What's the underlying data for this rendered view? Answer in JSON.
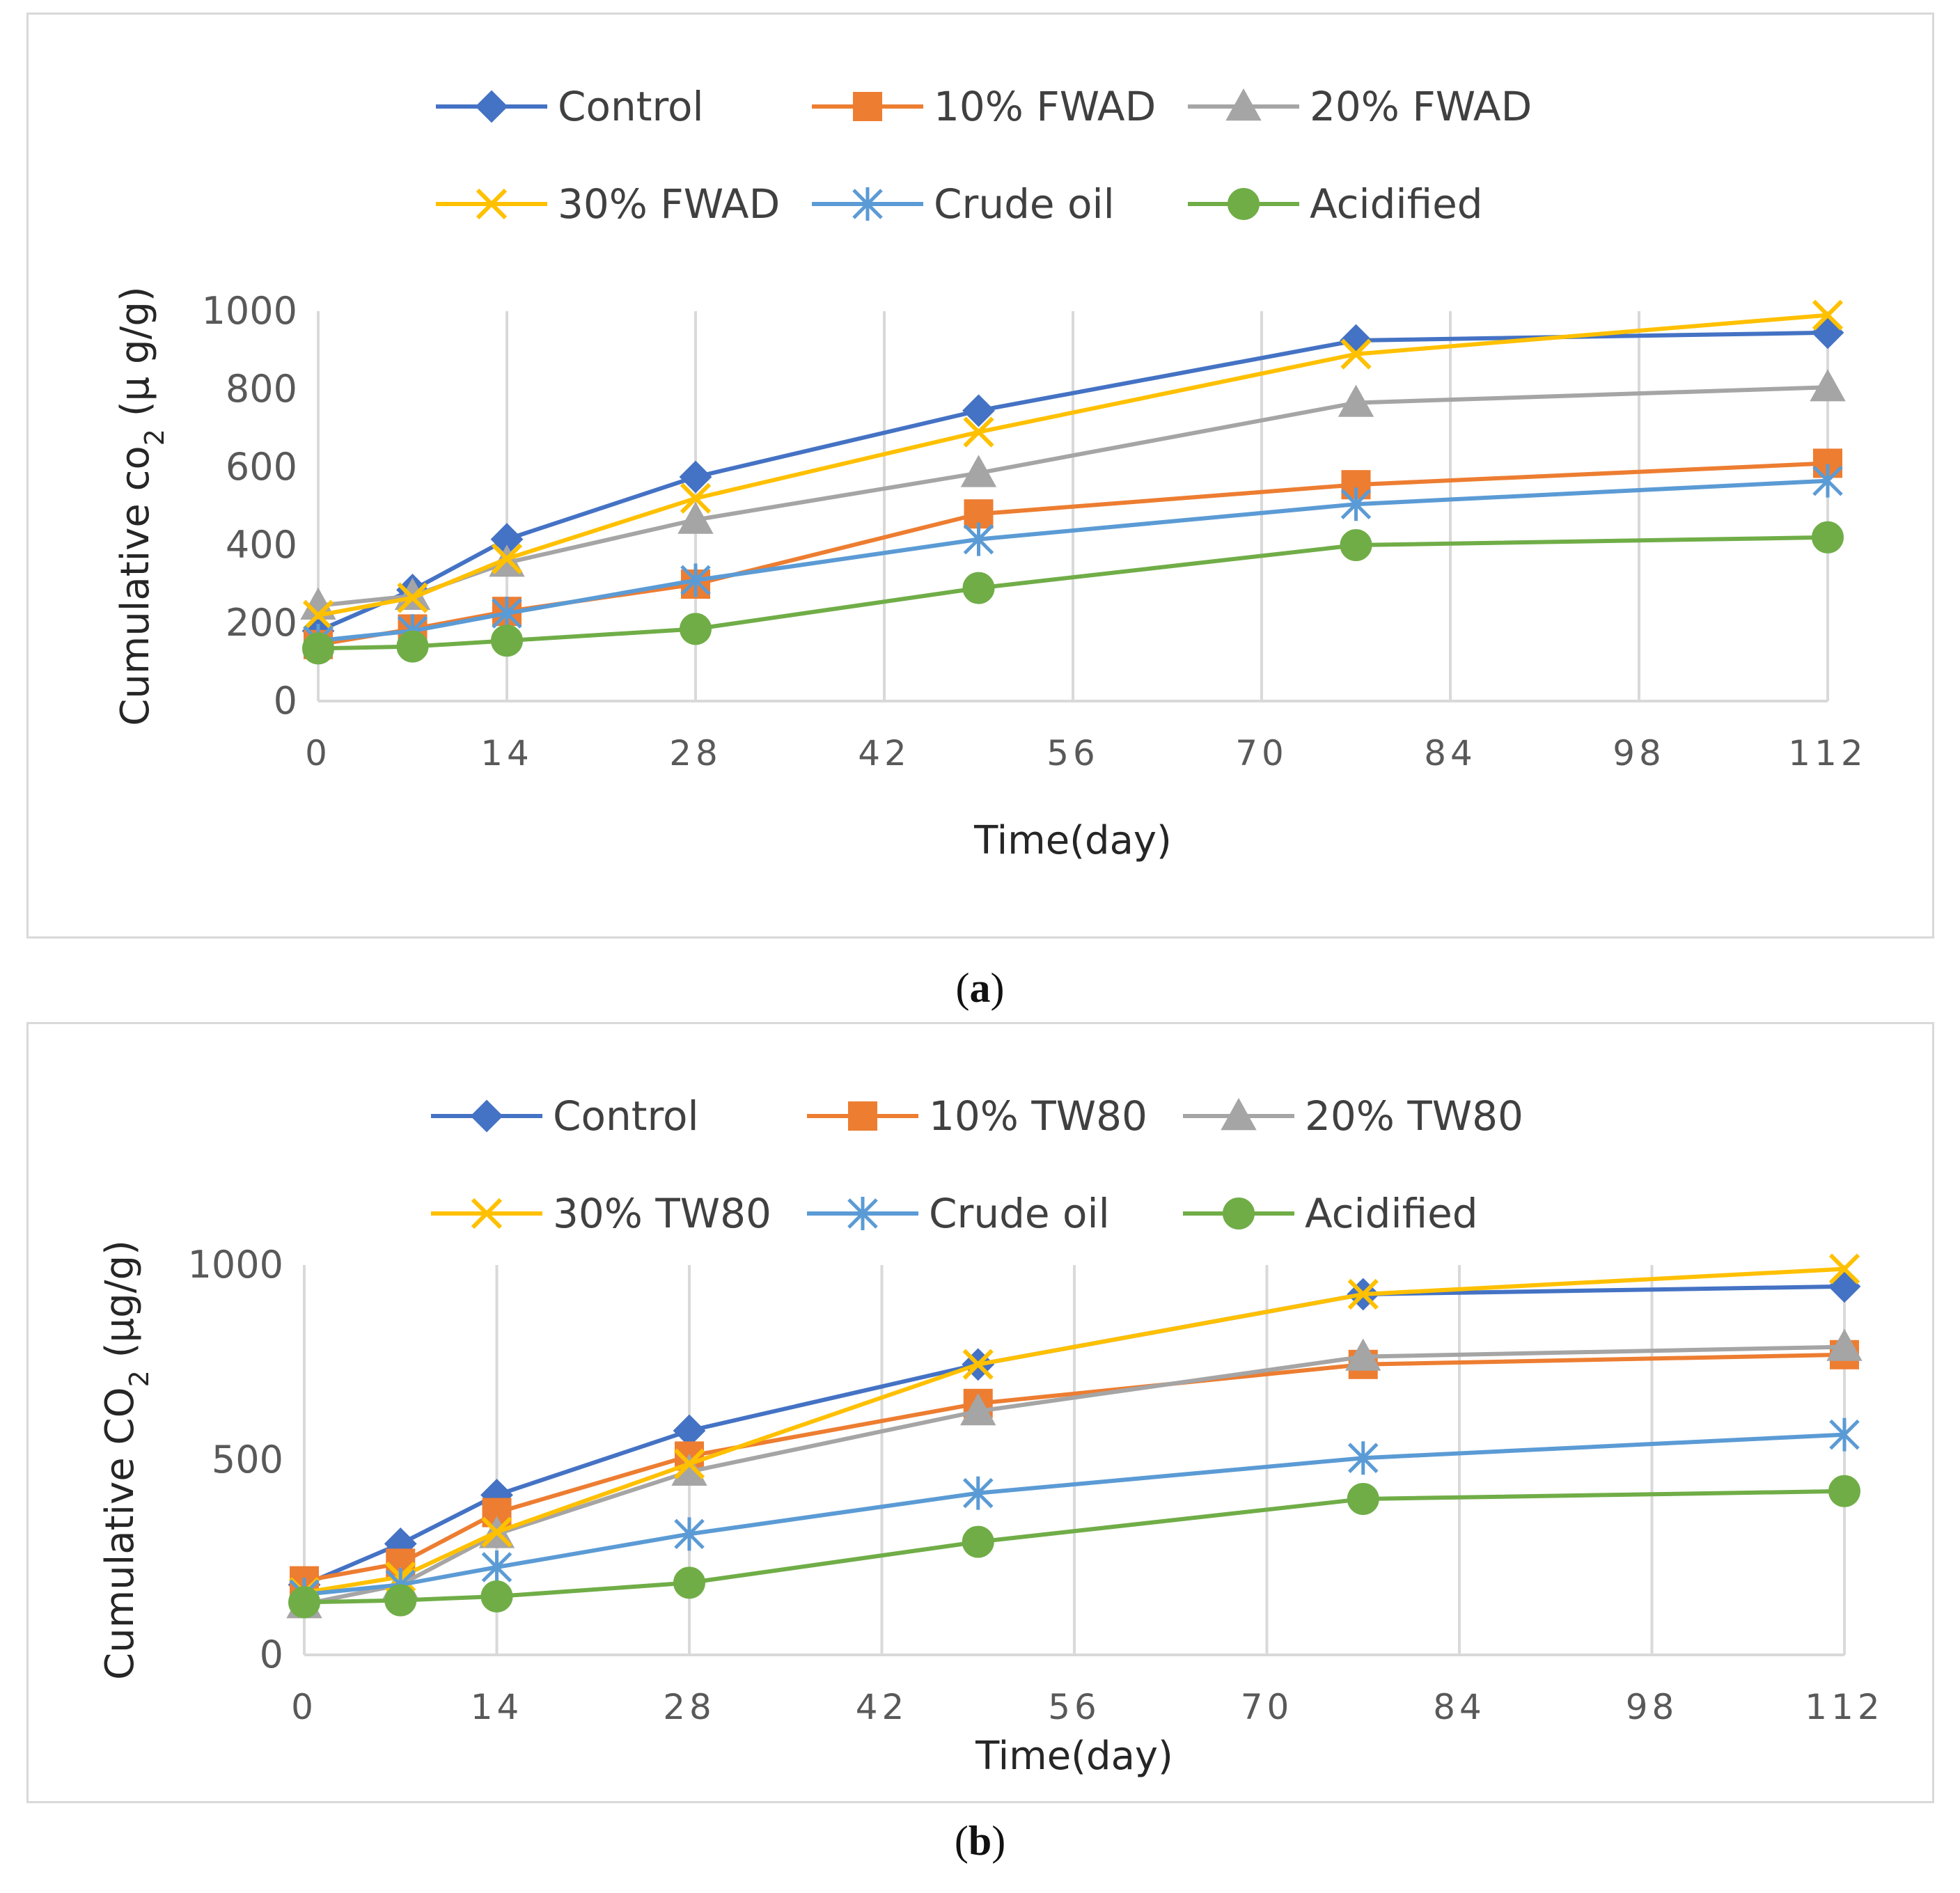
{
  "figure": {
    "caption_a_label": "a",
    "caption_b_label": "b"
  },
  "colors": {
    "control": "#4472C4",
    "ten": "#ED7D31",
    "twenty": "#A5A5A5",
    "thirty": "#FFC000",
    "crude": "#5B9BD5",
    "acidified": "#70AD47",
    "grid": "#d9d9d9"
  },
  "chart_data": [
    {
      "id": "a",
      "type": "line",
      "xlabel": "Time(day)",
      "ylabel_parts": [
        "Cumulative co",
        "2",
        " (μ g/g)"
      ],
      "x": [
        0,
        7,
        14,
        28,
        49,
        77,
        112
      ],
      "xticks": [
        0,
        14,
        28,
        42,
        56,
        70,
        84,
        98,
        112
      ],
      "xlim": [
        0,
        112
      ],
      "yticks": [
        0,
        200,
        400,
        600,
        800,
        1000
      ],
      "ylim": [
        0,
        1000
      ],
      "legend_position": "top",
      "series": [
        {
          "name": "Control",
          "key": "control",
          "marker": "diamond",
          "values": [
            180,
            285,
            415,
            575,
            745,
            925,
            945
          ]
        },
        {
          "name": "10% FWAD",
          "key": "ten",
          "marker": "square",
          "values": [
            145,
            185,
            230,
            300,
            480,
            555,
            610
          ]
        },
        {
          "name": "20% FWAD",
          "key": "twenty",
          "marker": "triangle",
          "values": [
            245,
            270,
            355,
            465,
            585,
            765,
            805
          ]
        },
        {
          "name": "30% FWAD",
          "key": "thirty",
          "marker": "x",
          "values": [
            220,
            265,
            365,
            520,
            690,
            890,
            990
          ]
        },
        {
          "name": "Crude oil",
          "key": "crude",
          "marker": "star",
          "values": [
            155,
            180,
            225,
            310,
            415,
            505,
            565
          ]
        },
        {
          "name": "Acidified",
          "key": "acidified",
          "marker": "circle",
          "values": [
            135,
            140,
            155,
            185,
            290,
            400,
            420
          ]
        }
      ]
    },
    {
      "id": "b",
      "type": "line",
      "xlabel": "Time(day)",
      "ylabel_parts": [
        "Cumulative CO",
        "2",
        " (μg/g)"
      ],
      "x": [
        0,
        7,
        14,
        28,
        49,
        77,
        112
      ],
      "xticks": [
        0,
        14,
        28,
        42,
        56,
        70,
        84,
        98,
        112
      ],
      "xlim": [
        0,
        112
      ],
      "yticks": [
        0,
        500,
        1000
      ],
      "ylim": [
        0,
        1000
      ],
      "legend_position": "top",
      "series": [
        {
          "name": "Control",
          "key": "control",
          "marker": "diamond",
          "values": [
            180,
            285,
            410,
            575,
            745,
            925,
            945
          ]
        },
        {
          "name": "10% TW80",
          "key": "ten",
          "marker": "square",
          "values": [
            190,
            235,
            365,
            510,
            645,
            745,
            770
          ]
        },
        {
          "name": " 20% TW80",
          "key": "twenty",
          "marker": "triangle",
          "values": [
            130,
            180,
            310,
            470,
            625,
            765,
            790
          ]
        },
        {
          "name": "30% TW80",
          "key": "thirty",
          "marker": "x",
          "values": [
            160,
            200,
            315,
            490,
            745,
            925,
            990
          ]
        },
        {
          "name": "Crude oil",
          "key": "crude",
          "marker": "star",
          "values": [
            155,
            180,
            225,
            310,
            415,
            505,
            565
          ]
        },
        {
          "name": "Acidified",
          "key": "acidified",
          "marker": "circle",
          "values": [
            135,
            140,
            150,
            185,
            290,
            400,
            420
          ]
        }
      ]
    }
  ]
}
